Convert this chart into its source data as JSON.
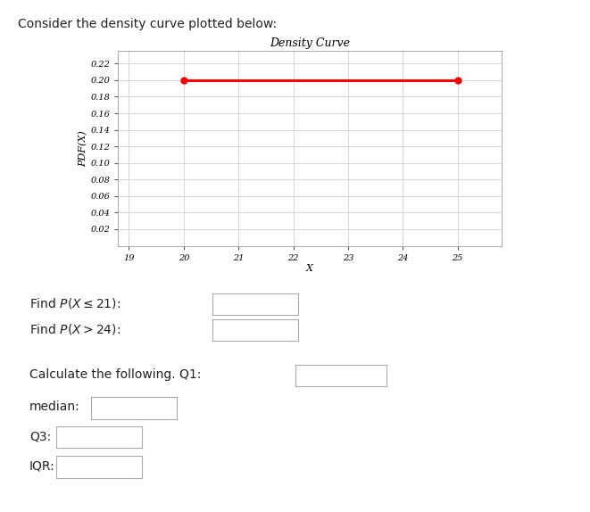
{
  "title": "Density Curve",
  "xlabel": "X",
  "ylabel": "PDF(X)",
  "line_x": [
    20,
    25
  ],
  "line_y": [
    0.2,
    0.2
  ],
  "line_color": "#ff0000",
  "marker_color": "#ff0000",
  "marker_style": "o",
  "marker_size": 5,
  "xlim": [
    18.8,
    25.8
  ],
  "ylim": [
    0,
    0.235
  ],
  "xticks": [
    19,
    20,
    21,
    22,
    23,
    24,
    25
  ],
  "yticks": [
    0.02,
    0.04,
    0.06,
    0.08,
    0.1,
    0.12,
    0.14,
    0.16,
    0.18,
    0.2,
    0.22
  ],
  "grid_color": "#d0d0d0",
  "bg_color": "#ffffff",
  "title_fontsize": 9,
  "axis_label_fontsize": 8,
  "tick_fontsize": 7,
  "line_width": 2.2,
  "header_text": "Consider the density curve plotted below:",
  "header_fontsize": 10
}
